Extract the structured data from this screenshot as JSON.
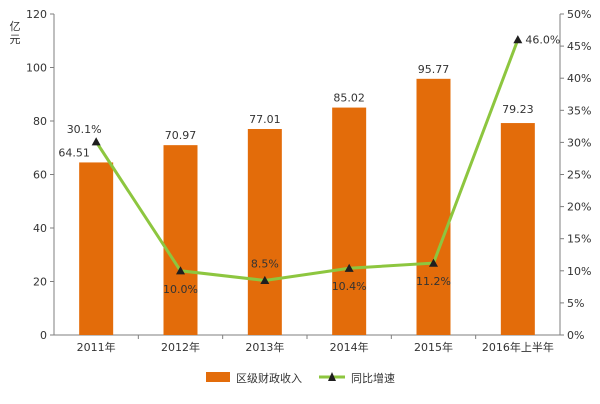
{
  "chart_data": {
    "type": "bar",
    "categories": [
      "2011年",
      "2012年",
      "2013年",
      "2014年",
      "2015年",
      "2016年上半年"
    ],
    "series": [
      {
        "name": "区级财政收入",
        "type": "bar",
        "axis": "left",
        "values": [
          64.51,
          70.97,
          77.01,
          85.02,
          95.77,
          79.23
        ],
        "labels": [
          "64.51",
          "70.97",
          "77.01",
          "85.02",
          "95.77",
          "79.23"
        ]
      },
      {
        "name": "同比增速",
        "type": "line",
        "axis": "right",
        "values": [
          30.1,
          10.0,
          8.5,
          10.4,
          11.2,
          46.0
        ],
        "labels": [
          "30.1%",
          "10.0%",
          "8.5%",
          "10.4%",
          "11.2%",
          "46.0%"
        ]
      }
    ],
    "y_left": {
      "unit": "亿元",
      "range": [
        0,
        120
      ],
      "ticks": [
        "0",
        "20",
        "40",
        "60",
        "80",
        "100",
        "120"
      ]
    },
    "y_right": {
      "range": [
        0,
        50
      ],
      "ticks": [
        "0%",
        "5%",
        "10%",
        "15%",
        "20%",
        "25%",
        "30%",
        "35%",
        "40%",
        "45%",
        "50%"
      ]
    },
    "grid": false,
    "legend": "bottom",
    "colors": {
      "bar": "#E36C0A",
      "line": "#8DC63F",
      "marker": "#1F1F1F",
      "axis": "#7F7F7F"
    }
  }
}
